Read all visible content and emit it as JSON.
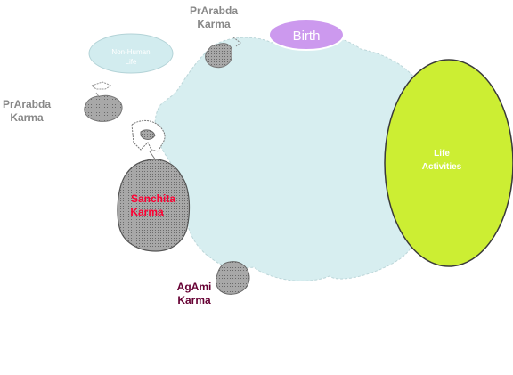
{
  "diagram": {
    "nodes": {
      "prarabda_top": {
        "line1": "PrArabda",
        "line2": "Karma"
      },
      "prarabda_left": {
        "line1": "PrArabda",
        "line2": "Karma"
      },
      "non_human_life": {
        "line1": "Non-Human",
        "line2": "Life"
      },
      "birth": {
        "label": "Birth"
      },
      "life_activities": {
        "line1": "Life",
        "line2": "Activities"
      },
      "sanchita_karma": {
        "line1": "Sanchita",
        "line2": "Karma"
      },
      "agami_karma": {
        "line1": "AgAmi",
        "line2": "Karma"
      }
    },
    "colors": {
      "life_blob": "#d7eef0",
      "non_human": "#d2ecef",
      "birth": "#cc99ee",
      "life_activities": "#ccee33",
      "karma_sack": "#a6a6a6",
      "prarabda_text": "#888888",
      "sanchita_text": "#ff0033",
      "agami_text": "#660033"
    }
  }
}
